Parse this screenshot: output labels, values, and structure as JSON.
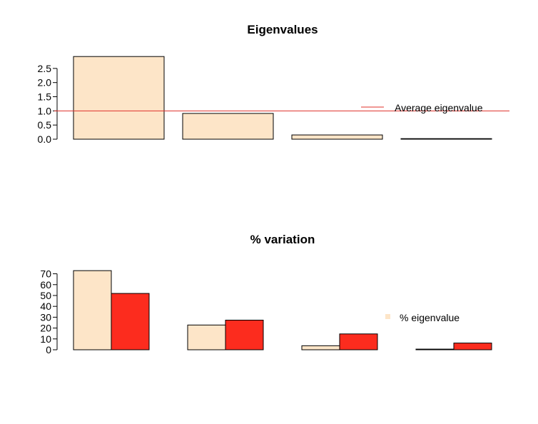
{
  "chart_data": [
    {
      "type": "bar",
      "title": "Eigenvalues",
      "categories": [
        "",
        "",
        "",
        ""
      ],
      "values": [
        2.92,
        0.91,
        0.15,
        0.02
      ],
      "yticks": [
        "0.0",
        "0.5",
        "1.0",
        "1.5",
        "2.0",
        "2.5"
      ],
      "ylim": [
        0,
        2.95
      ],
      "reference_line": {
        "value": 1.0,
        "color": "#e0302a"
      },
      "bar_fill": "#fde5c8",
      "legend": {
        "label": "Average eigenvalue",
        "position": "right",
        "symbol": "line",
        "color": "#e0302a"
      }
    },
    {
      "type": "bar",
      "title": "% variation",
      "categories": [
        "",
        "",
        "",
        ""
      ],
      "series": [
        {
          "values": [
            72.9,
            22.8,
            3.7,
            0.6
          ],
          "color": "#fde5c8"
        },
        {
          "values": [
            51.9,
            27.3,
            14.6,
            6.2
          ],
          "color": "#fc2c1e"
        }
      ],
      "yticks": [
        "0",
        "10",
        "20",
        "30",
        "40",
        "50",
        "60",
        "70"
      ],
      "ylim": [
        0,
        73
      ],
      "legend": {
        "label": "% eigenvalue",
        "position": "right",
        "symbol": "square",
        "color": "#fde5c8"
      }
    }
  ]
}
